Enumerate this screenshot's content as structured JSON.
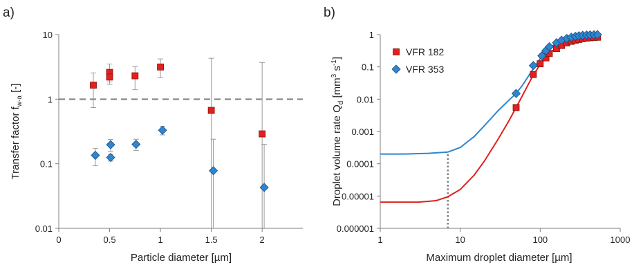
{
  "colors": {
    "red": "#e0211d",
    "red_edge": "#8a0f0c",
    "blue": "#2f85d0",
    "blue_edge": "#174e80",
    "axis": "#7f7f7f",
    "errorbar": "#9a9a9a",
    "dashed": "#808080"
  },
  "chart_data": [
    {
      "panel_label": "a)",
      "type": "scatter",
      "xlabel": "Particle diameter [µm]",
      "ylabel": {
        "main": "Transfer factor f",
        "subscript": "w-a",
        "suffix": " [-]"
      },
      "x_scale": "linear",
      "y_scale": "log",
      "xlim": [
        0,
        2.4
      ],
      "ylim": [
        0.01,
        10
      ],
      "x_ticks": [
        {
          "value": 0,
          "label": "0"
        },
        {
          "value": 0.5,
          "label": "0.5"
        },
        {
          "value": 1,
          "label": "1"
        },
        {
          "value": 1.5,
          "label": "1.5"
        },
        {
          "value": 2,
          "label": "2"
        }
      ],
      "y_ticks": [
        {
          "value": 0.01,
          "label": "0.01"
        },
        {
          "value": 0.1,
          "label": "0.1"
        },
        {
          "value": 1,
          "label": "1"
        },
        {
          "value": 10,
          "label": "10"
        }
      ],
      "reference_line": {
        "y": 1,
        "style": "dashed"
      },
      "series": [
        {
          "marker": "square",
          "color": "red",
          "points": [
            {
              "x": 0.34,
              "y": 1.65,
              "err_lo": 0.74,
              "err_hi": 2.55
            },
            {
              "x": 0.5,
              "y": 2.6,
              "err_lo": 1.85,
              "err_hi": 3.5
            },
            {
              "x": 0.5,
              "y": 2.2,
              "err_lo": 1.7,
              "err_hi": 2.8
            },
            {
              "x": 0.75,
              "y": 2.3,
              "err_lo": 1.4,
              "err_hi": 3.2
            },
            {
              "x": 1.0,
              "y": 3.15,
              "err_lo": 2.15,
              "err_hi": 4.2
            },
            {
              "x": 1.5,
              "y": 0.67,
              "err_lo": 0.0001,
              "err_hi": 4.3
            },
            {
              "x": 2.0,
              "y": 0.29,
              "err_lo": 0.0001,
              "err_hi": 3.7
            }
          ]
        },
        {
          "marker": "diamond",
          "color": "blue",
          "points": [
            {
              "x": 0.36,
              "y": 0.135,
              "err_lo": 0.093,
              "err_hi": 0.172
            },
            {
              "x": 0.51,
              "y": 0.197,
              "err_lo": 0.155,
              "err_hi": 0.238
            },
            {
              "x": 0.51,
              "y": 0.125,
              "err_lo": 0.11,
              "err_hi": 0.14
            },
            {
              "x": 0.76,
              "y": 0.2,
              "err_lo": 0.16,
              "err_hi": 0.24
            },
            {
              "x": 1.02,
              "y": 0.33,
              "err_lo": 0.28,
              "err_hi": 0.38
            },
            {
              "x": 1.52,
              "y": 0.078,
              "err_lo": 0.0001,
              "err_hi": 0.24
            },
            {
              "x": 2.02,
              "y": 0.043,
              "err_lo": 0.0001,
              "err_hi": 0.2
            }
          ]
        }
      ]
    },
    {
      "panel_label": "b)",
      "type": "line",
      "xlabel": "Maximum droplet diameter [µm]",
      "ylabel": {
        "main": "Droplet volume rate Q",
        "subscript": "d",
        "unit_pre": " [mm",
        "unit_sup1": "3",
        "unit_mid": " s",
        "unit_sup2": "-1",
        "unit_post": "]"
      },
      "x_scale": "log",
      "y_scale": "log",
      "xlim": [
        1,
        1000
      ],
      "ylim": [
        1e-06,
        1
      ],
      "x_ticks": [
        {
          "value": 1,
          "label": "1"
        },
        {
          "value": 10,
          "label": "10"
        },
        {
          "value": 100,
          "label": "100"
        },
        {
          "value": 1000,
          "label": "1000"
        }
      ],
      "y_ticks": [
        {
          "value": 1e-06,
          "label": "0.000001"
        },
        {
          "value": 1e-05,
          "label": "0.00001"
        },
        {
          "value": 0.0001,
          "label": "0.0001"
        },
        {
          "value": 0.001,
          "label": "0.001"
        },
        {
          "value": 0.01,
          "label": "0.01"
        },
        {
          "value": 0.1,
          "label": "0.1"
        },
        {
          "value": 1,
          "label": "1"
        }
      ],
      "legend": {
        "position": "top-left",
        "entries": [
          "VFR 182",
          "VFR 353"
        ]
      },
      "vertical_marker": {
        "x": 7,
        "style": "dotted"
      },
      "series": [
        {
          "name": "VFR 182",
          "marker": "square",
          "color": "red",
          "curve": [
            [
              1,
              6.5e-06
            ],
            [
              3,
              6.5e-06
            ],
            [
              5,
              7.2e-06
            ],
            [
              7,
              9.5e-06
            ],
            [
              10,
              1.6e-05
            ],
            [
              15,
              4.5e-05
            ],
            [
              20,
              0.00012
            ],
            [
              30,
              0.0006
            ],
            [
              40,
              0.002
            ],
            [
              50,
              0.0055
            ],
            [
              60,
              0.013
            ],
            [
              80,
              0.05
            ],
            [
              100,
              0.12
            ],
            [
              120,
              0.22
            ],
            [
              150,
              0.35
            ],
            [
              200,
              0.52
            ],
            [
              250,
              0.64
            ],
            [
              300,
              0.72
            ],
            [
              400,
              0.8
            ],
            [
              500,
              0.83
            ]
          ],
          "markers": [
            [
              50,
              0.0055
            ],
            [
              82,
              0.058
            ],
            [
              100,
              0.125
            ],
            [
              118,
              0.19
            ],
            [
              130,
              0.26
            ],
            [
              160,
              0.37
            ],
            [
              185,
              0.46
            ],
            [
              215,
              0.55
            ],
            [
              245,
              0.62
            ],
            [
              275,
              0.67
            ],
            [
              305,
              0.71
            ],
            [
              340,
              0.75
            ],
            [
              380,
              0.78
            ],
            [
              420,
              0.8
            ],
            [
              470,
              0.82
            ],
            [
              520,
              0.83
            ]
          ]
        },
        {
          "name": "VFR 353",
          "marker": "diamond",
          "color": "blue",
          "curve": [
            [
              1,
              0.0002
            ],
            [
              2,
              0.0002
            ],
            [
              4,
              0.00021
            ],
            [
              7,
              0.00023
            ],
            [
              10,
              0.00032
            ],
            [
              15,
              0.0007
            ],
            [
              20,
              0.0015
            ],
            [
              30,
              0.0045
            ],
            [
              40,
              0.009
            ],
            [
              50,
              0.015
            ],
            [
              60,
              0.027
            ],
            [
              80,
              0.08
            ],
            [
              100,
              0.18
            ],
            [
              120,
              0.3
            ],
            [
              150,
              0.5
            ],
            [
              200,
              0.72
            ],
            [
              250,
              0.83
            ],
            [
              300,
              0.88
            ],
            [
              400,
              0.95
            ],
            [
              500,
              0.98
            ]
          ],
          "markers": [
            [
              50,
              0.015
            ],
            [
              82,
              0.11
            ],
            [
              105,
              0.22
            ],
            [
              118,
              0.32
            ],
            [
              130,
              0.42
            ],
            [
              160,
              0.56
            ],
            [
              185,
              0.67
            ],
            [
              215,
              0.76
            ],
            [
              245,
              0.83
            ],
            [
              275,
              0.88
            ],
            [
              305,
              0.92
            ],
            [
              340,
              0.95
            ],
            [
              380,
              0.97
            ],
            [
              420,
              0.98
            ],
            [
              470,
              0.99
            ],
            [
              520,
              1.0
            ]
          ]
        }
      ]
    }
  ]
}
